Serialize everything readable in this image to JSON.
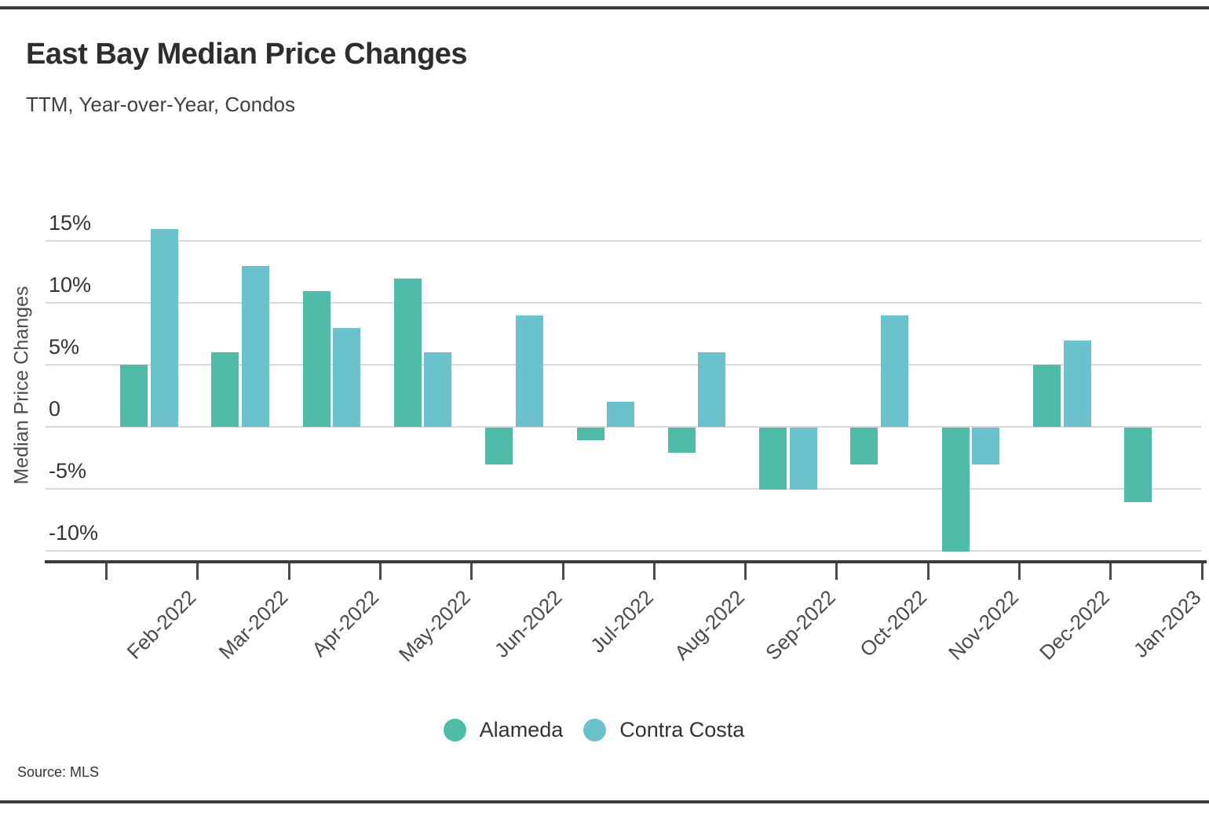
{
  "chart_data": {
    "type": "bar",
    "title": "East Bay Median Price Changes",
    "subtitle": "TTM, Year-over-Year, Condos",
    "ylabel": "Median Price Changes",
    "xlabel": "",
    "unit": "%",
    "categories": [
      "Feb-2022",
      "Mar-2022",
      "Apr-2022",
      "May-2022",
      "Jun-2022",
      "Jul-2022",
      "Aug-2022",
      "Sep-2022",
      "Oct-2022",
      "Nov-2022",
      "Dec-2022",
      "Jan-2023"
    ],
    "series": [
      {
        "name": "Alameda",
        "color": "#4EBCA8",
        "values": [
          5,
          6,
          11,
          12,
          -3,
          -1,
          -2,
          -5,
          -3,
          -10,
          5,
          -6
        ]
      },
      {
        "name": "Contra Costa",
        "color": "#6BC2CD",
        "values": [
          16,
          13,
          8,
          6,
          9,
          2,
          6,
          -5,
          9,
          -3,
          7,
          null
        ]
      }
    ],
    "yticks": [
      15,
      10,
      5,
      0,
      -5,
      -10
    ],
    "ytick_labels": [
      "15%",
      "10%",
      "5%",
      "0",
      "-5%",
      "-10%"
    ],
    "ylim": [
      -11,
      17.5
    ],
    "grid": "horizontal",
    "legend_position": "bottom",
    "source": "Source: MLS"
  }
}
